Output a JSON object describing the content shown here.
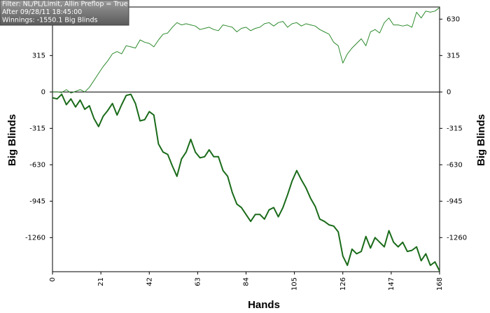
{
  "chart_data": {
    "type": "line",
    "annotations": [
      "Filter: NL/PL/Limit, Allin Preflop = True",
      "After 09/28/11 18:45:00",
      "Winnings: -1550.1 Big Blinds"
    ],
    "xlabel": "Hands",
    "ylabel": "Big Blinds",
    "y2label": "Big Blinds",
    "x": [
      0,
      2,
      4,
      6,
      8,
      10,
      12,
      14,
      16,
      18,
      20,
      22,
      24,
      26,
      28,
      30,
      32,
      34,
      36,
      38,
      40,
      42,
      44,
      46,
      48,
      50,
      52,
      54,
      56,
      58,
      60,
      62,
      64,
      66,
      68,
      70,
      72,
      74,
      76,
      78,
      80,
      82,
      84,
      86,
      88,
      90,
      92,
      94,
      96,
      98,
      100,
      102,
      104,
      106,
      108,
      110,
      112,
      114,
      116,
      118,
      120,
      122,
      124,
      126,
      128,
      130,
      132,
      134,
      136,
      138,
      140,
      142,
      144,
      146,
      148,
      150,
      152,
      154,
      156,
      158,
      160,
      162,
      164,
      166,
      168
    ],
    "series": [
      {
        "color": "#2e8b2e",
        "values": [
          0,
          0,
          -5,
          20,
          -10,
          5,
          20,
          0,
          40,
          100,
          160,
          220,
          270,
          330,
          350,
          330,
          400,
          390,
          380,
          450,
          430,
          420,
          390,
          450,
          500,
          510,
          560,
          600,
          580,
          590,
          580,
          570,
          540,
          550,
          560,
          540,
          530,
          580,
          570,
          560,
          520,
          550,
          560,
          530,
          550,
          560,
          590,
          600,
          570,
          600,
          610,
          560,
          590,
          600,
          570,
          590,
          580,
          570,
          540,
          520,
          500,
          430,
          400,
          250,
          330,
          380,
          420,
          460,
          400,
          520,
          540,
          510,
          600,
          640,
          580,
          580,
          570,
          580,
          560,
          690,
          640,
          700,
          690,
          700,
          730
        ]
      },
      {
        "color": "#1a6b1a",
        "values": [
          -50,
          -60,
          -20,
          -110,
          -60,
          -130,
          -70,
          -150,
          -120,
          -230,
          -300,
          -210,
          -160,
          -100,
          -200,
          -110,
          -30,
          -20,
          -100,
          -250,
          -240,
          -170,
          -200,
          -450,
          -520,
          -540,
          -640,
          -730,
          -580,
          -520,
          -410,
          -520,
          -570,
          -560,
          -500,
          -560,
          -560,
          -680,
          -730,
          -870,
          -970,
          -1000,
          -1060,
          -1120,
          -1060,
          -1060,
          -1100,
          -1020,
          -1000,
          -1080,
          -1000,
          -890,
          -770,
          -680,
          -760,
          -830,
          -920,
          -990,
          -1100,
          -1120,
          -1150,
          -1160,
          -1210,
          -1420,
          -1500,
          -1360,
          -1400,
          -1380,
          -1250,
          -1350,
          -1260,
          -1300,
          -1340,
          -1200,
          -1300,
          -1340,
          -1300,
          -1380,
          -1370,
          -1340,
          -1460,
          -1400,
          -1500,
          -1470,
          -1550
        ]
      }
    ],
    "xlim": [
      0,
      168
    ],
    "xticks": [
      0,
      21,
      42,
      63,
      84,
      105,
      126,
      147,
      168
    ],
    "ylim": [
      -1555,
      735
    ],
    "yticks": [
      630,
      315,
      0,
      -315,
      -630,
      -945,
      -1260
    ],
    "grid": false
  }
}
